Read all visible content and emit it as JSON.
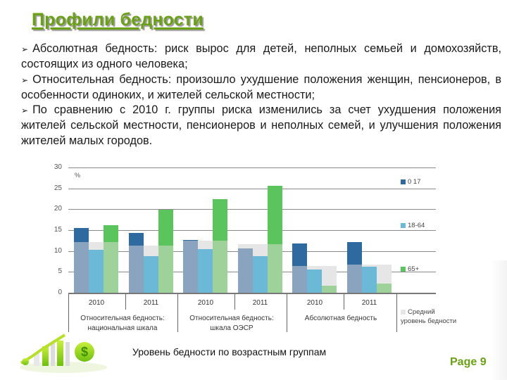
{
  "slide": {
    "title": "Профили бедности",
    "bullets": [
      {
        "text_line1": "Абсолютная бедность: риск вырос для детей, неполных семьей и домохозяйств, состоящих из одного человека;"
      },
      {
        "text_line1": "Относительная бедность: произошло ухудшение положения женщин, пенсионеров, в особенности одиноких, и жителей сельской местности;"
      },
      {
        "text_line1": "По сравнению с 2010 г. группы риска изменились за счет ухудшения положения жителей сельской местности, пенсионеров и неполных семей, и улучшения положения жителей малых городов."
      }
    ],
    "bullet_glyph": "➢",
    "caption": "Уровень бедности по возрастным группам",
    "page_label": "Page 9"
  },
  "colors": {
    "title_green": "#6aa114",
    "s0_17_top": "#2e6aa0",
    "s0_17_base": "#8aa3bf",
    "s18_64": "#6bb9d6",
    "s65_top": "#5cc45c",
    "s65_base": "#9fd29a",
    "avg": "#e6e6e6"
  },
  "chart_data": {
    "type": "bar",
    "title": "Уровень бедности по возрастным группам",
    "ylabel": "%",
    "xlabel": "",
    "ylim": [
      0,
      30
    ],
    "yticks": [
      "0",
      "5",
      "10",
      "15",
      "20",
      "25",
      "30"
    ],
    "grid": true,
    "legend_position": "right",
    "categories": [
      "2010",
      "2011",
      "2010",
      "2011",
      "2010",
      "2011"
    ],
    "category_groups": [
      {
        "label": "Относительная бедность: национальная шкала",
        "years": [
          "2010",
          "2011"
        ]
      },
      {
        "label": "Относительная бедность: шкала ОЭСР",
        "years": [
          "2010",
          "2011"
        ]
      },
      {
        "label": "Абсолютная бедность",
        "years": [
          "2010",
          "2011"
        ]
      }
    ],
    "series": [
      {
        "name": "0 17",
        "values": [
          15.5,
          14.4,
          12.7,
          10.7,
          11.8,
          12.1
        ]
      },
      {
        "name": "18-64",
        "values": [
          10.3,
          8.8,
          10.4,
          8.8,
          5.6,
          6.2
        ]
      },
      {
        "name": "65+",
        "values": [
          16.2,
          19.9,
          22.5,
          25.7,
          1.7,
          2.2
        ]
      },
      {
        "name": "Средний уровень бедности",
        "values": [
          12.1,
          11.3,
          12.5,
          11.6,
          6.4,
          6.8
        ]
      }
    ],
    "legend": [
      "0 17",
      "18-64",
      "65+",
      "Средний уровень бедности"
    ]
  }
}
